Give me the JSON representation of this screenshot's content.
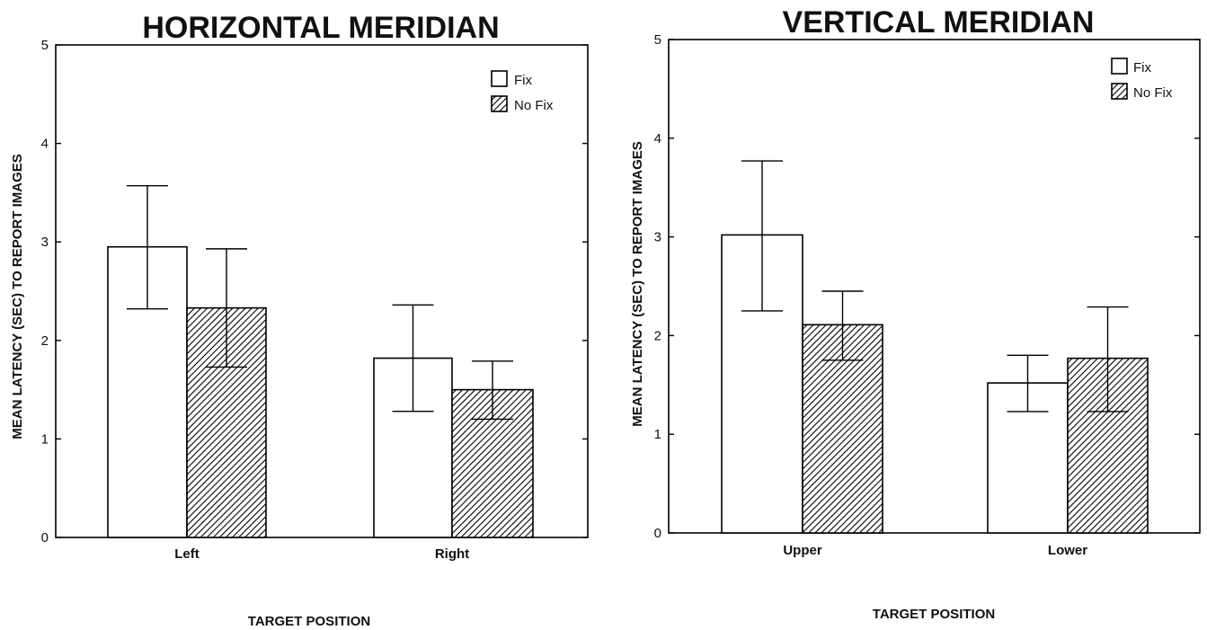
{
  "chart_data": [
    {
      "type": "bar",
      "title": "HORIZONTAL MERIDIAN",
      "xlabel": "TARGET POSITION",
      "ylabel": "MEAN LATENCY (SEC) TO REPORT IMAGES",
      "ylim": [
        0,
        5
      ],
      "yticks": [
        0,
        1,
        2,
        3,
        4,
        5
      ],
      "categories": [
        "Left",
        "Right"
      ],
      "legend_position": "top-right",
      "series": [
        {
          "name": "Fix",
          "pattern": "open",
          "values": [
            2.95,
            1.82
          ],
          "err_low": [
            2.32,
            1.28
          ],
          "err_high": [
            3.57,
            2.36
          ]
        },
        {
          "name": "No Fix",
          "pattern": "hatched",
          "values": [
            2.33,
            1.5
          ],
          "err_low": [
            1.73,
            1.2
          ],
          "err_high": [
            2.93,
            1.79
          ]
        }
      ]
    },
    {
      "type": "bar",
      "title": "VERTICAL MERIDIAN",
      "xlabel": "TARGET POSITION",
      "ylabel": "MEAN LATENCY (SEC) TO REPORT IMAGES",
      "ylim": [
        0,
        5
      ],
      "yticks": [
        0,
        1,
        2,
        3,
        4,
        5
      ],
      "categories": [
        "Upper",
        "Lower"
      ],
      "legend_position": "top-right",
      "series": [
        {
          "name": "Fix",
          "pattern": "open",
          "values": [
            3.02,
            1.52
          ],
          "err_low": [
            2.25,
            1.23
          ],
          "err_high": [
            3.77,
            1.8
          ]
        },
        {
          "name": "No Fix",
          "pattern": "hatched",
          "values": [
            2.11,
            1.77
          ],
          "err_low": [
            1.75,
            1.23
          ],
          "err_high": [
            2.45,
            2.29
          ]
        }
      ]
    }
  ]
}
